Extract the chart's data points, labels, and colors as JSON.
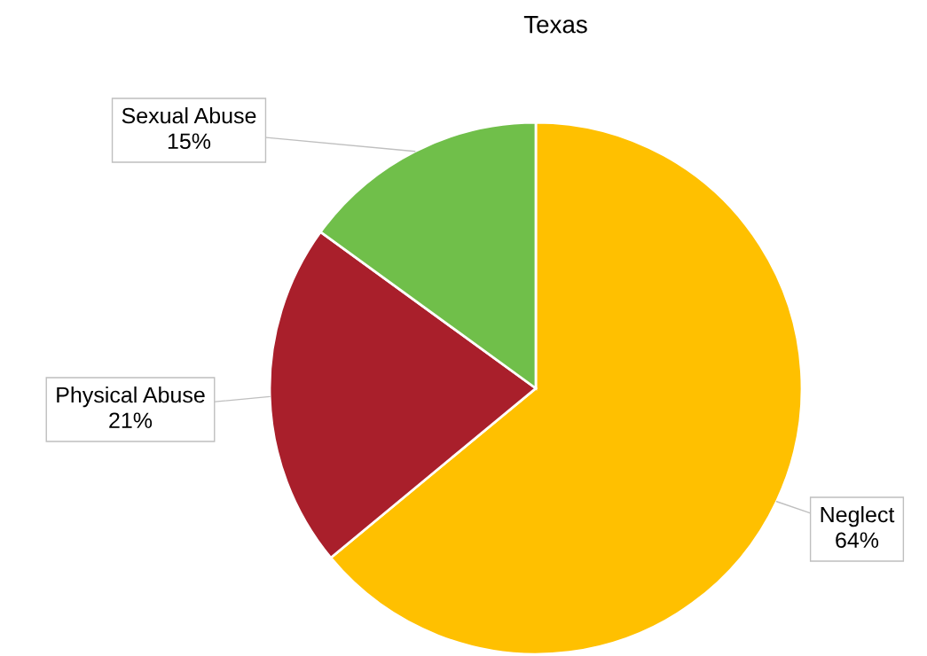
{
  "chart_data": {
    "type": "pie",
    "title": "Texas",
    "categories": [
      "Neglect",
      "Physical Abuse",
      "Sexual Abuse"
    ],
    "values": [
      64,
      21,
      15
    ],
    "colors": [
      "#ffc000",
      "#a91f2b",
      "#70bf4a"
    ],
    "value_labels": [
      "64%",
      "21%",
      "15%"
    ]
  }
}
